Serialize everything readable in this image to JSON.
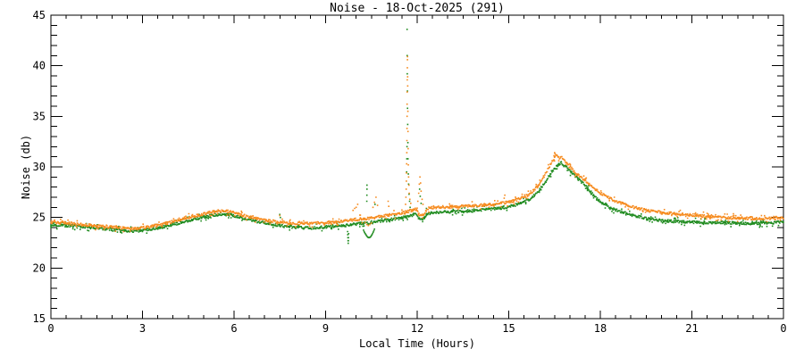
{
  "title": "Noise - 18-Oct-2025 (291)",
  "chart_data": {
    "type": "scatter",
    "title": "Noise - 18-Oct-2025 (291)",
    "x_axis": {
      "label": "Local Time (Hours)",
      "range": [
        0,
        24
      ],
      "major_ticks": [
        0,
        3,
        6,
        9,
        12,
        15,
        18,
        21,
        24
      ],
      "major_tick_labels": [
        "0",
        "3",
        "6",
        "9",
        "12",
        "15",
        "18",
        "21",
        "0"
      ],
      "minor_tick_step": 0.5
    },
    "y_axis": {
      "label": "Noise (db)",
      "range": [
        15,
        45
      ],
      "major_ticks": [
        15,
        20,
        25,
        30,
        35,
        40,
        45
      ],
      "major_tick_labels": [
        "15",
        "20",
        "25",
        "30",
        "35",
        "40",
        "45"
      ],
      "minor_tick_step": 1
    },
    "grid": false,
    "legend": null,
    "style": {
      "background": "#ffffff",
      "frame_color": "#000000",
      "text_color": "#000000",
      "point_size": 1.6,
      "noise_amplitude": 0.13,
      "samples_per_hour": 50
    },
    "series": [
      {
        "name": "noise-trace-green",
        "color": "#1F8B1F",
        "anchors": [
          [
            0,
            24.3
          ],
          [
            0.5,
            24.2
          ],
          [
            1,
            24.1
          ],
          [
            1.5,
            23.95
          ],
          [
            2,
            23.8
          ],
          [
            2.4,
            23.7
          ],
          [
            2.8,
            23.65
          ],
          [
            3.2,
            23.8
          ],
          [
            3.6,
            24.0
          ],
          [
            4,
            24.3
          ],
          [
            4.4,
            24.6
          ],
          [
            4.8,
            24.9
          ],
          [
            5.2,
            25.15
          ],
          [
            5.6,
            25.35
          ],
          [
            5.9,
            25.25
          ],
          [
            6.2,
            25.0
          ],
          [
            6.6,
            24.7
          ],
          [
            7,
            24.45
          ],
          [
            7.5,
            24.2
          ],
          [
            8,
            24.0
          ],
          [
            8.5,
            23.95
          ],
          [
            9,
            24.05
          ],
          [
            9.5,
            24.15
          ],
          [
            10,
            24.35
          ],
          [
            10.5,
            24.5
          ],
          [
            11,
            24.75
          ],
          [
            11.4,
            24.9
          ],
          [
            11.7,
            25.1
          ],
          [
            11.95,
            25.3
          ],
          [
            12.1,
            24.75
          ],
          [
            12.2,
            24.85
          ],
          [
            12.35,
            25.4
          ],
          [
            12.6,
            25.5
          ],
          [
            13,
            25.55
          ],
          [
            13.5,
            25.6
          ],
          [
            14,
            25.7
          ],
          [
            14.5,
            25.85
          ],
          [
            15,
            26.05
          ],
          [
            15.4,
            26.4
          ],
          [
            15.7,
            26.8
          ],
          [
            16,
            27.7
          ],
          [
            16.2,
            28.5
          ],
          [
            16.4,
            29.5
          ],
          [
            16.6,
            30.1
          ],
          [
            16.72,
            30.45
          ],
          [
            16.8,
            29.95
          ],
          [
            16.88,
            30.2
          ],
          [
            17,
            29.6
          ],
          [
            17.2,
            29.0
          ],
          [
            17.5,
            28.2
          ],
          [
            17.75,
            27.3
          ],
          [
            18,
            26.5
          ],
          [
            18.25,
            26.1
          ],
          [
            18.5,
            25.75
          ],
          [
            19,
            25.25
          ],
          [
            19.5,
            24.9
          ],
          [
            20,
            24.7
          ],
          [
            20.5,
            24.6
          ],
          [
            21,
            24.55
          ],
          [
            21.5,
            24.5
          ],
          [
            22,
            24.5
          ],
          [
            22.5,
            24.45
          ],
          [
            23,
            24.4
          ],
          [
            23.5,
            24.45
          ],
          [
            24,
            24.55
          ]
        ],
        "outliers": [
          [
            7.5,
            25.3
          ],
          [
            7.52,
            25.0
          ],
          [
            9.72,
            23.6
          ],
          [
            9.725,
            23.3
          ],
          [
            9.73,
            23.0
          ],
          [
            9.735,
            22.7
          ],
          [
            9.74,
            22.45
          ],
          [
            9.745,
            22.7
          ],
          [
            9.75,
            23.0
          ],
          [
            9.755,
            23.4
          ],
          [
            10.24,
            23.75
          ],
          [
            10.26,
            23.6
          ],
          [
            10.28,
            23.5
          ],
          [
            10.3,
            23.4
          ],
          [
            10.32,
            23.3
          ],
          [
            10.34,
            23.2
          ],
          [
            10.36,
            23.12
          ],
          [
            10.38,
            23.06
          ],
          [
            10.4,
            23.02
          ],
          [
            10.42,
            23.0
          ],
          [
            10.44,
            23.02
          ],
          [
            10.46,
            23.06
          ],
          [
            10.48,
            23.12
          ],
          [
            10.5,
            23.2
          ],
          [
            10.52,
            23.3
          ],
          [
            10.54,
            23.42
          ],
          [
            10.56,
            23.55
          ],
          [
            10.58,
            23.7
          ],
          [
            10.6,
            23.85
          ],
          [
            10.35,
            26.6
          ],
          [
            10.352,
            27.2
          ],
          [
            10.354,
            27.8
          ],
          [
            10.356,
            28.2
          ],
          [
            10.62,
            26.3
          ],
          [
            11.655,
            29.5
          ],
          [
            11.66,
            30.8
          ],
          [
            11.665,
            32.0
          ],
          [
            11.668,
            43.6
          ],
          [
            11.672,
            41.0
          ],
          [
            11.675,
            39.2
          ],
          [
            11.68,
            37.5
          ],
          [
            11.685,
            35.8
          ],
          [
            11.69,
            34.2
          ],
          [
            11.695,
            32.4
          ],
          [
            11.7,
            30.8
          ],
          [
            11.71,
            29.3
          ],
          [
            11.72,
            28.3
          ],
          [
            11.735,
            27.3
          ],
          [
            11.75,
            26.6
          ],
          [
            11.77,
            26.0
          ],
          [
            12.08,
            27.8
          ],
          [
            12.1,
            27.1
          ],
          [
            12.13,
            26.4
          ],
          [
            12.3,
            25.9
          ]
        ]
      },
      {
        "name": "noise-trace-orange",
        "color": "#F68B1F",
        "anchors": [
          [
            0,
            24.55
          ],
          [
            0.5,
            24.45
          ],
          [
            1,
            24.3
          ],
          [
            1.5,
            24.15
          ],
          [
            2,
            24.05
          ],
          [
            2.4,
            23.95
          ],
          [
            2.8,
            23.9
          ],
          [
            3.2,
            24.05
          ],
          [
            3.6,
            24.3
          ],
          [
            4,
            24.6
          ],
          [
            4.4,
            24.9
          ],
          [
            4.8,
            25.2
          ],
          [
            5.2,
            25.5
          ],
          [
            5.5,
            25.65
          ],
          [
            5.8,
            25.6
          ],
          [
            6.1,
            25.35
          ],
          [
            6.5,
            25.05
          ],
          [
            7,
            24.75
          ],
          [
            7.5,
            24.55
          ],
          [
            8,
            24.4
          ],
          [
            8.5,
            24.4
          ],
          [
            9,
            24.5
          ],
          [
            9.5,
            24.6
          ],
          [
            10,
            24.8
          ],
          [
            10.5,
            24.95
          ],
          [
            11,
            25.2
          ],
          [
            11.4,
            25.35
          ],
          [
            11.7,
            25.6
          ],
          [
            11.95,
            25.8
          ],
          [
            12.1,
            25.2
          ],
          [
            12.2,
            25.3
          ],
          [
            12.35,
            25.9
          ],
          [
            12.6,
            26.0
          ],
          [
            13,
            26.05
          ],
          [
            13.5,
            26.1
          ],
          [
            14,
            26.2
          ],
          [
            14.5,
            26.3
          ],
          [
            15,
            26.5
          ],
          [
            15.4,
            26.9
          ],
          [
            15.7,
            27.3
          ],
          [
            16,
            28.3
          ],
          [
            16.2,
            29.3
          ],
          [
            16.4,
            30.4
          ],
          [
            16.55,
            31.2
          ],
          [
            16.65,
            30.9
          ],
          [
            16.72,
            31.0
          ],
          [
            16.85,
            30.5
          ],
          [
            17,
            30.0
          ],
          [
            17.2,
            29.4
          ],
          [
            17.5,
            28.7
          ],
          [
            17.75,
            28.0
          ],
          [
            18,
            27.4
          ],
          [
            18.25,
            27.0
          ],
          [
            18.5,
            26.6
          ],
          [
            19,
            26.1
          ],
          [
            19.5,
            25.7
          ],
          [
            20,
            25.5
          ],
          [
            20.5,
            25.35
          ],
          [
            21,
            25.25
          ],
          [
            21.5,
            25.1
          ],
          [
            22,
            25.0
          ],
          [
            22.5,
            24.95
          ],
          [
            23,
            24.9
          ],
          [
            23.5,
            24.9
          ],
          [
            24,
            24.95
          ]
        ],
        "outliers": [
          [
            7.5,
            25.2
          ],
          [
            9.9,
            25.7
          ],
          [
            9.95,
            25.9
          ],
          [
            10.0,
            26.0
          ],
          [
            10.05,
            26.3
          ],
          [
            10.3,
            24.5
          ],
          [
            10.35,
            24.3
          ],
          [
            10.4,
            24.2
          ],
          [
            10.45,
            24.3
          ],
          [
            10.5,
            24.45
          ],
          [
            10.55,
            26.0
          ],
          [
            10.6,
            26.5
          ],
          [
            10.65,
            27.0
          ],
          [
            10.7,
            26.2
          ],
          [
            11.05,
            26.6
          ],
          [
            11.07,
            26.1
          ],
          [
            11.62,
            26.3
          ],
          [
            11.63,
            27.0
          ],
          [
            11.64,
            27.8
          ],
          [
            11.645,
            28.6
          ],
          [
            11.65,
            29.4
          ],
          [
            11.655,
            30.3
          ],
          [
            11.66,
            31.4
          ],
          [
            11.662,
            32.6
          ],
          [
            11.665,
            33.8
          ],
          [
            11.668,
            35.0
          ],
          [
            11.67,
            36.2
          ],
          [
            11.672,
            37.4
          ],
          [
            11.675,
            38.6
          ],
          [
            11.678,
            39.8
          ],
          [
            11.68,
            40.6
          ],
          [
            11.683,
            40.9
          ],
          [
            11.688,
            38.9
          ],
          [
            11.69,
            38.0
          ],
          [
            11.695,
            35.5
          ],
          [
            11.7,
            33.5
          ],
          [
            11.705,
            31.8
          ],
          [
            11.71,
            30.2
          ],
          [
            11.72,
            29.0
          ],
          [
            11.73,
            28.2
          ],
          [
            11.74,
            27.4
          ],
          [
            11.76,
            26.8
          ],
          [
            11.79,
            26.4
          ],
          [
            12.02,
            26.6
          ],
          [
            12.05,
            27.4
          ],
          [
            12.07,
            28.3
          ],
          [
            12.09,
            29.0
          ],
          [
            12.11,
            28.4
          ],
          [
            12.13,
            27.6
          ],
          [
            12.16,
            26.8
          ],
          [
            12.19,
            26.3
          ],
          [
            14.85,
            26.9
          ],
          [
            14.87,
            27.2
          ],
          [
            16.5,
            31.4
          ],
          [
            16.52,
            31.3
          ]
        ]
      }
    ]
  }
}
